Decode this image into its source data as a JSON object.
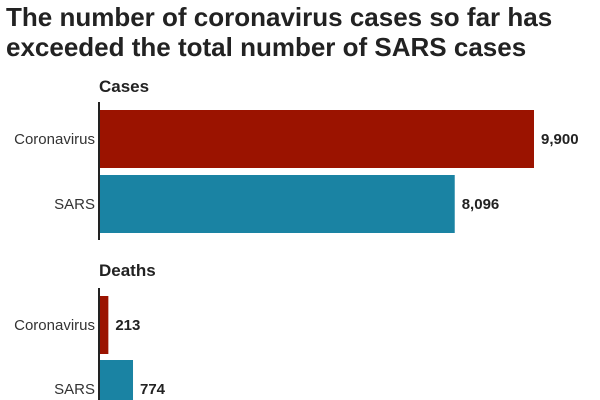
{
  "title_lines": [
    "The number of coronavirus cases so far has",
    "exceeded the total number of SARS cases"
  ],
  "colors": {
    "coronavirus": "#9b1300",
    "sars": "#1a83a3",
    "axis": "#222222"
  },
  "chart_data": [
    {
      "type": "bar",
      "orientation": "horizontal",
      "title": "Cases",
      "categories": [
        "Coronavirus",
        "SARS"
      ],
      "values": [
        9900,
        8096
      ],
      "value_labels": [
        "9,900",
        "8,096"
      ],
      "colors": [
        "#9b1300",
        "#1a83a3"
      ]
    },
    {
      "type": "bar",
      "orientation": "horizontal",
      "title": "Deaths",
      "categories": [
        "Coronavirus",
        "SARS"
      ],
      "values": [
        213,
        774
      ],
      "value_labels": [
        "213",
        "774"
      ],
      "colors": [
        "#9b1300",
        "#1a83a3"
      ]
    }
  ]
}
